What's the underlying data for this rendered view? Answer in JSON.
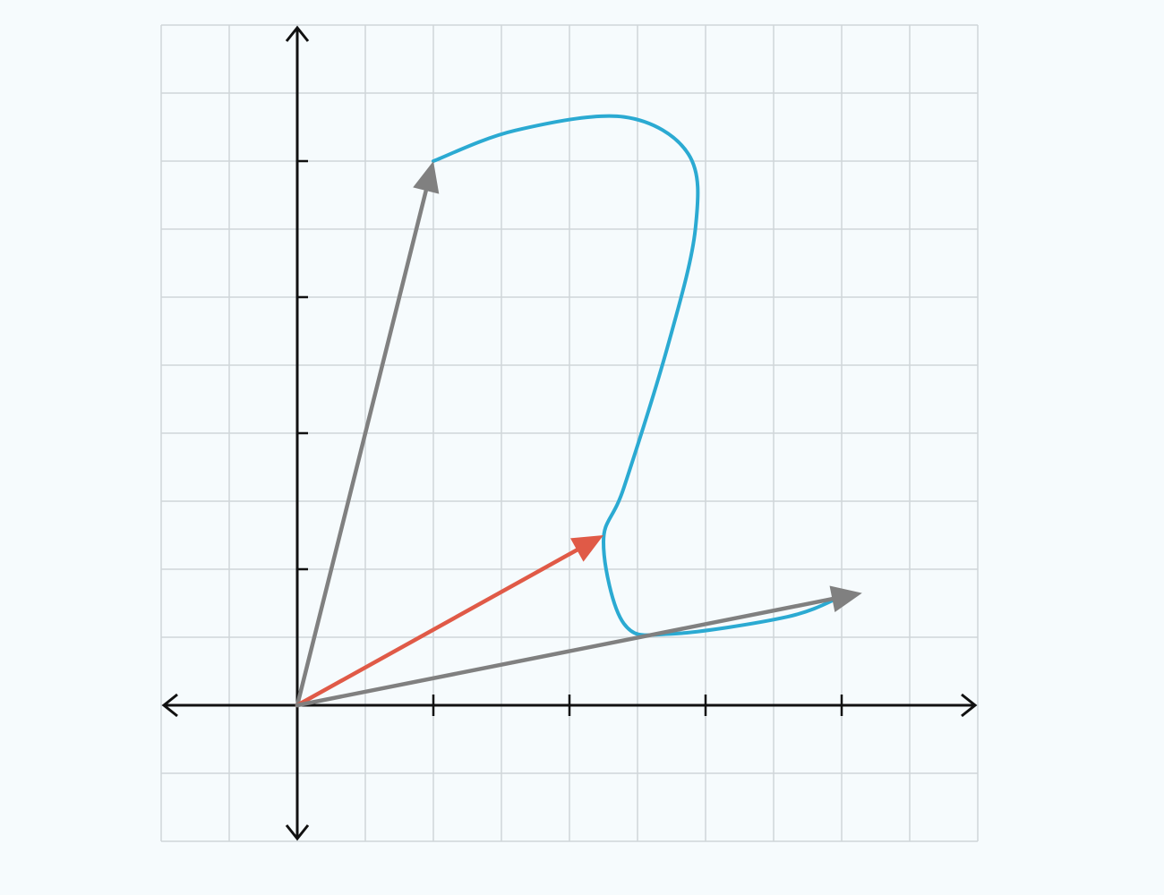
{
  "grid": {
    "x_range": [
      -2,
      10
    ],
    "y_range": [
      -2,
      10
    ],
    "x_axis_ticks": [
      2,
      4,
      6,
      8
    ],
    "y_axis_ticks": [
      2,
      4,
      6,
      8
    ],
    "grid_visible": true
  },
  "vectors": [
    {
      "id": "gray-upper-vector",
      "color": "#808080",
      "from": [
        0,
        0
      ],
      "to": [
        2,
        8
      ]
    },
    {
      "id": "red-vector",
      "color": "#e05a47",
      "from": [
        0,
        0
      ],
      "to": [
        4.5,
        2.5
      ]
    },
    {
      "id": "gray-lower-vector",
      "color": "#808080",
      "from": [
        0,
        0
      ],
      "to": [
        8.3,
        1.65
      ]
    }
  ],
  "curve": {
    "color": "#2baad2",
    "points": [
      [
        2,
        8
      ],
      [
        3.2,
        8.45
      ],
      [
        4.8,
        8.65
      ],
      [
        5.75,
        8.1
      ],
      [
        5.85,
        7
      ],
      [
        5.45,
        5.3
      ],
      [
        4.8,
        3.2
      ],
      [
        4.5,
        2.4
      ],
      [
        4.8,
        1.2
      ],
      [
        5.5,
        1.05
      ],
      [
        7.2,
        1.3
      ],
      [
        8,
        1.6
      ]
    ]
  }
}
